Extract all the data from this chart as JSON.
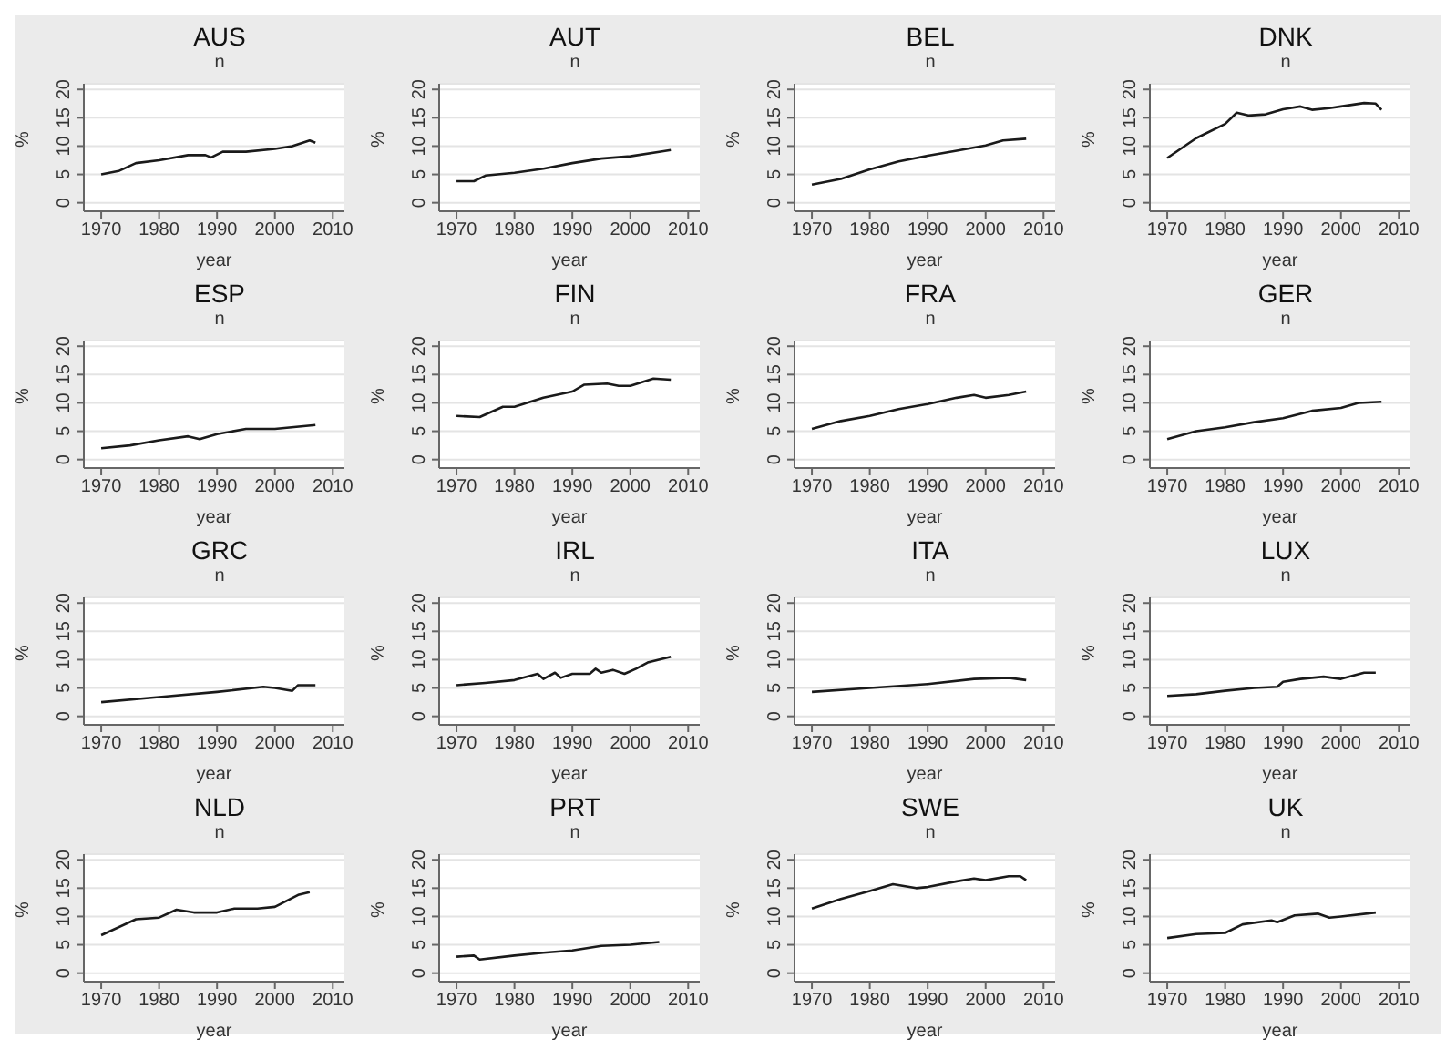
{
  "chart_data": [
    {
      "type": "line",
      "title": "AUS",
      "subtitle": "n",
      "xlabel": "year",
      "ylabel": "%",
      "color": "#1a1a1a",
      "grid": "y",
      "xlim": [
        1967,
        2012
      ],
      "xticks": [
        1970,
        1980,
        1990,
        2000,
        2010
      ],
      "ylim": [
        -1.5,
        21
      ],
      "yticks": [
        0,
        5,
        10,
        15,
        20
      ],
      "x": [
        1970,
        1973,
        1976,
        1980,
        1985,
        1988,
        1989,
        1991,
        1995,
        2000,
        2003,
        2006,
        2007
      ],
      "values": [
        5,
        5.6,
        7,
        7.5,
        8.4,
        8.4,
        8,
        9,
        9,
        9.5,
        10,
        11,
        10.6
      ]
    },
    {
      "type": "line",
      "title": "AUT",
      "subtitle": "n",
      "xlabel": "year",
      "ylabel": "%",
      "color": "#1a1a1a",
      "grid": "y",
      "xlim": [
        1967,
        2012
      ],
      "xticks": [
        1970,
        1980,
        1990,
        2000,
        2010
      ],
      "ylim": [
        -1.5,
        21
      ],
      "yticks": [
        0,
        5,
        10,
        15,
        20
      ],
      "x": [
        1970,
        1973,
        1975,
        1980,
        1985,
        1990,
        1995,
        2000,
        2005,
        2007
      ],
      "values": [
        3.8,
        3.8,
        4.8,
        5.3,
        6,
        7,
        7.8,
        8.2,
        9,
        9.3
      ]
    },
    {
      "type": "line",
      "title": "BEL",
      "subtitle": "n",
      "xlabel": "year",
      "ylabel": "%",
      "color": "#1a1a1a",
      "grid": "y",
      "xlim": [
        1967,
        2012
      ],
      "xticks": [
        1970,
        1980,
        1990,
        2000,
        2010
      ],
      "ylim": [
        -1.5,
        21
      ],
      "yticks": [
        0,
        5,
        10,
        15,
        20
      ],
      "x": [
        1970,
        1975,
        1980,
        1985,
        1990,
        1995,
        2000,
        2003,
        2007
      ],
      "values": [
        3.2,
        4.2,
        5.9,
        7.3,
        8.3,
        9.2,
        10.1,
        11,
        11.3
      ]
    },
    {
      "type": "line",
      "title": "DNK",
      "subtitle": "n",
      "xlabel": "year",
      "ylabel": "%",
      "color": "#1a1a1a",
      "grid": "y",
      "xlim": [
        1967,
        2012
      ],
      "xticks": [
        1970,
        1980,
        1990,
        2000,
        2010
      ],
      "ylim": [
        -1.5,
        21
      ],
      "yticks": [
        0,
        5,
        10,
        15,
        20
      ],
      "x": [
        1970,
        1975,
        1980,
        1982,
        1984,
        1987,
        1990,
        1993,
        1995,
        1998,
        2000,
        2004,
        2006,
        2007
      ],
      "values": [
        7.9,
        11.4,
        13.9,
        15.9,
        15.4,
        15.6,
        16.5,
        17,
        16.4,
        16.7,
        17,
        17.6,
        17.5,
        16.4
      ]
    },
    {
      "type": "line",
      "title": "ESP",
      "subtitle": "n",
      "xlabel": "year",
      "ylabel": "%",
      "color": "#1a1a1a",
      "grid": "y",
      "xlim": [
        1967,
        2012
      ],
      "xticks": [
        1970,
        1980,
        1990,
        2000,
        2010
      ],
      "ylim": [
        -1.5,
        21
      ],
      "yticks": [
        0,
        5,
        10,
        15,
        20
      ],
      "x": [
        1970,
        1975,
        1980,
        1985,
        1987,
        1990,
        1995,
        2000,
        2007
      ],
      "values": [
        2,
        2.5,
        3.4,
        4.1,
        3.6,
        4.5,
        5.4,
        5.4,
        6.1
      ]
    },
    {
      "type": "line",
      "title": "FIN",
      "subtitle": "n",
      "xlabel": "year",
      "ylabel": "%",
      "color": "#1a1a1a",
      "grid": "y",
      "xlim": [
        1967,
        2012
      ],
      "xticks": [
        1970,
        1980,
        1990,
        2000,
        2010
      ],
      "ylim": [
        -1.5,
        21
      ],
      "yticks": [
        0,
        5,
        10,
        15,
        20
      ],
      "x": [
        1970,
        1974,
        1978,
        1980,
        1985,
        1990,
        1992,
        1996,
        1998,
        2000,
        2004,
        2007
      ],
      "values": [
        7.7,
        7.5,
        9.3,
        9.3,
        10.9,
        12,
        13.2,
        13.4,
        13,
        13,
        14.3,
        14.1
      ]
    },
    {
      "type": "line",
      "title": "FRA",
      "subtitle": "n",
      "xlabel": "year",
      "ylabel": "%",
      "color": "#1a1a1a",
      "grid": "y",
      "xlim": [
        1967,
        2012
      ],
      "xticks": [
        1970,
        1980,
        1990,
        2000,
        2010
      ],
      "ylim": [
        -1.5,
        21
      ],
      "yticks": [
        0,
        5,
        10,
        15,
        20
      ],
      "x": [
        1970,
        1975,
        1980,
        1985,
        1990,
        1995,
        1998,
        2000,
        2004,
        2007
      ],
      "values": [
        5.4,
        6.8,
        7.7,
        8.9,
        9.8,
        10.9,
        11.4,
        10.9,
        11.4,
        12
      ]
    },
    {
      "type": "line",
      "title": "GER",
      "subtitle": "n",
      "xlabel": "year",
      "ylabel": "%",
      "color": "#1a1a1a",
      "grid": "y",
      "xlim": [
        1967,
        2012
      ],
      "xticks": [
        1970,
        1980,
        1990,
        2000,
        2010
      ],
      "ylim": [
        -1.5,
        21
      ],
      "yticks": [
        0,
        5,
        10,
        15,
        20
      ],
      "x": [
        1970,
        1975,
        1980,
        1985,
        1990,
        1995,
        2000,
        2003,
        2007
      ],
      "values": [
        3.6,
        5,
        5.7,
        6.6,
        7.3,
        8.6,
        9.1,
        10,
        10.2
      ]
    },
    {
      "type": "line",
      "title": "GRC",
      "subtitle": "n",
      "xlabel": "year",
      "ylabel": "%",
      "color": "#1a1a1a",
      "grid": "y",
      "xlim": [
        1967,
        2012
      ],
      "xticks": [
        1970,
        1980,
        1990,
        2000,
        2010
      ],
      "ylim": [
        -1.5,
        21
      ],
      "yticks": [
        0,
        5,
        10,
        15,
        20
      ],
      "x": [
        1970,
        1980,
        1990,
        1998,
        2000,
        2003,
        2004,
        2007
      ],
      "values": [
        2.5,
        3.4,
        4.3,
        5.2,
        5,
        4.5,
        5.5,
        5.5
      ]
    },
    {
      "type": "line",
      "title": "IRL",
      "subtitle": "n",
      "xlabel": "year",
      "ylabel": "%",
      "color": "#1a1a1a",
      "grid": "y",
      "xlim": [
        1967,
        2012
      ],
      "xticks": [
        1970,
        1980,
        1990,
        2000,
        2010
      ],
      "ylim": [
        -1.5,
        21
      ],
      "yticks": [
        0,
        5,
        10,
        15,
        20
      ],
      "x": [
        1970,
        1975,
        1980,
        1984,
        1985,
        1987,
        1988,
        1990,
        1993,
        1994,
        1995,
        1997,
        1999,
        2001,
        2003,
        2007
      ],
      "values": [
        5.5,
        5.9,
        6.4,
        7.5,
        6.6,
        7.7,
        6.8,
        7.5,
        7.5,
        8.4,
        7.7,
        8.2,
        7.5,
        8.4,
        9.5,
        10.5
      ]
    },
    {
      "type": "line",
      "title": "ITA",
      "subtitle": "n",
      "xlabel": "year",
      "ylabel": "%",
      "color": "#1a1a1a",
      "grid": "y",
      "xlim": [
        1967,
        2012
      ],
      "xticks": [
        1970,
        1980,
        1990,
        2000,
        2010
      ],
      "ylim": [
        -1.5,
        21
      ],
      "yticks": [
        0,
        5,
        10,
        15,
        20
      ],
      "x": [
        1970,
        1980,
        1990,
        1998,
        2004,
        2007
      ],
      "values": [
        4.3,
        5,
        5.7,
        6.6,
        6.8,
        6.4
      ]
    },
    {
      "type": "line",
      "title": "LUX",
      "subtitle": "n",
      "xlabel": "year",
      "ylabel": "%",
      "color": "#1a1a1a",
      "grid": "y",
      "xlim": [
        1967,
        2012
      ],
      "xticks": [
        1970,
        1980,
        1990,
        2000,
        2010
      ],
      "ylim": [
        -1.5,
        21
      ],
      "yticks": [
        0,
        5,
        10,
        15,
        20
      ],
      "x": [
        1970,
        1975,
        1980,
        1985,
        1989,
        1990,
        1993,
        1997,
        2000,
        2004,
        2006
      ],
      "values": [
        3.6,
        3.9,
        4.5,
        5,
        5.2,
        6.1,
        6.6,
        7,
        6.6,
        7.7,
        7.7
      ]
    },
    {
      "type": "line",
      "title": "NLD",
      "subtitle": "n",
      "xlabel": "year",
      "ylabel": "%",
      "color": "#1a1a1a",
      "grid": "y",
      "xlim": [
        1967,
        2012
      ],
      "xticks": [
        1970,
        1980,
        1990,
        2000,
        2010
      ],
      "ylim": [
        -1.5,
        21
      ],
      "yticks": [
        0,
        5,
        10,
        15,
        20
      ],
      "x": [
        1970,
        1976,
        1980,
        1983,
        1986,
        1990,
        1993,
        1997,
        2000,
        2004,
        2006
      ],
      "values": [
        6.7,
        9.5,
        9.8,
        11.2,
        10.7,
        10.7,
        11.4,
        11.4,
        11.7,
        13.8,
        14.3
      ]
    },
    {
      "type": "line",
      "title": "PRT",
      "subtitle": "n",
      "xlabel": "year",
      "ylabel": "%",
      "color": "#1a1a1a",
      "grid": "y",
      "xlim": [
        1967,
        2012
      ],
      "xticks": [
        1970,
        1980,
        1990,
        2000,
        2010
      ],
      "ylim": [
        -1.5,
        21
      ],
      "yticks": [
        0,
        5,
        10,
        15,
        20
      ],
      "x": [
        1970,
        1973,
        1974,
        1980,
        1985,
        1990,
        1995,
        2000,
        2005
      ],
      "values": [
        2.9,
        3.1,
        2.4,
        3.1,
        3.6,
        4,
        4.8,
        5,
        5.5
      ]
    },
    {
      "type": "line",
      "title": "SWE",
      "subtitle": "n",
      "xlabel": "year",
      "ylabel": "%",
      "color": "#1a1a1a",
      "grid": "y",
      "xlim": [
        1967,
        2012
      ],
      "xticks": [
        1970,
        1980,
        1990,
        2000,
        2010
      ],
      "ylim": [
        -1.5,
        21
      ],
      "yticks": [
        0,
        5,
        10,
        15,
        20
      ],
      "x": [
        1970,
        1975,
        1980,
        1984,
        1988,
        1990,
        1995,
        1998,
        2000,
        2004,
        2006,
        2007
      ],
      "values": [
        11.4,
        13.1,
        14.5,
        15.7,
        15,
        15.2,
        16.2,
        16.7,
        16.4,
        17.1,
        17.1,
        16.4
      ]
    },
    {
      "type": "line",
      "title": "UK",
      "subtitle": "n",
      "xlabel": "year",
      "ylabel": "%",
      "color": "#1a1a1a",
      "grid": "y",
      "xlim": [
        1967,
        2012
      ],
      "xticks": [
        1970,
        1980,
        1990,
        2000,
        2010
      ],
      "ylim": [
        -1.5,
        21
      ],
      "yticks": [
        0,
        5,
        10,
        15,
        20
      ],
      "x": [
        1970,
        1975,
        1980,
        1983,
        1988,
        1989,
        1992,
        1996,
        1998,
        2000,
        2006
      ],
      "values": [
        6.2,
        6.9,
        7.1,
        8.6,
        9.3,
        9,
        10.2,
        10.5,
        9.8,
        10,
        10.7
      ]
    }
  ]
}
